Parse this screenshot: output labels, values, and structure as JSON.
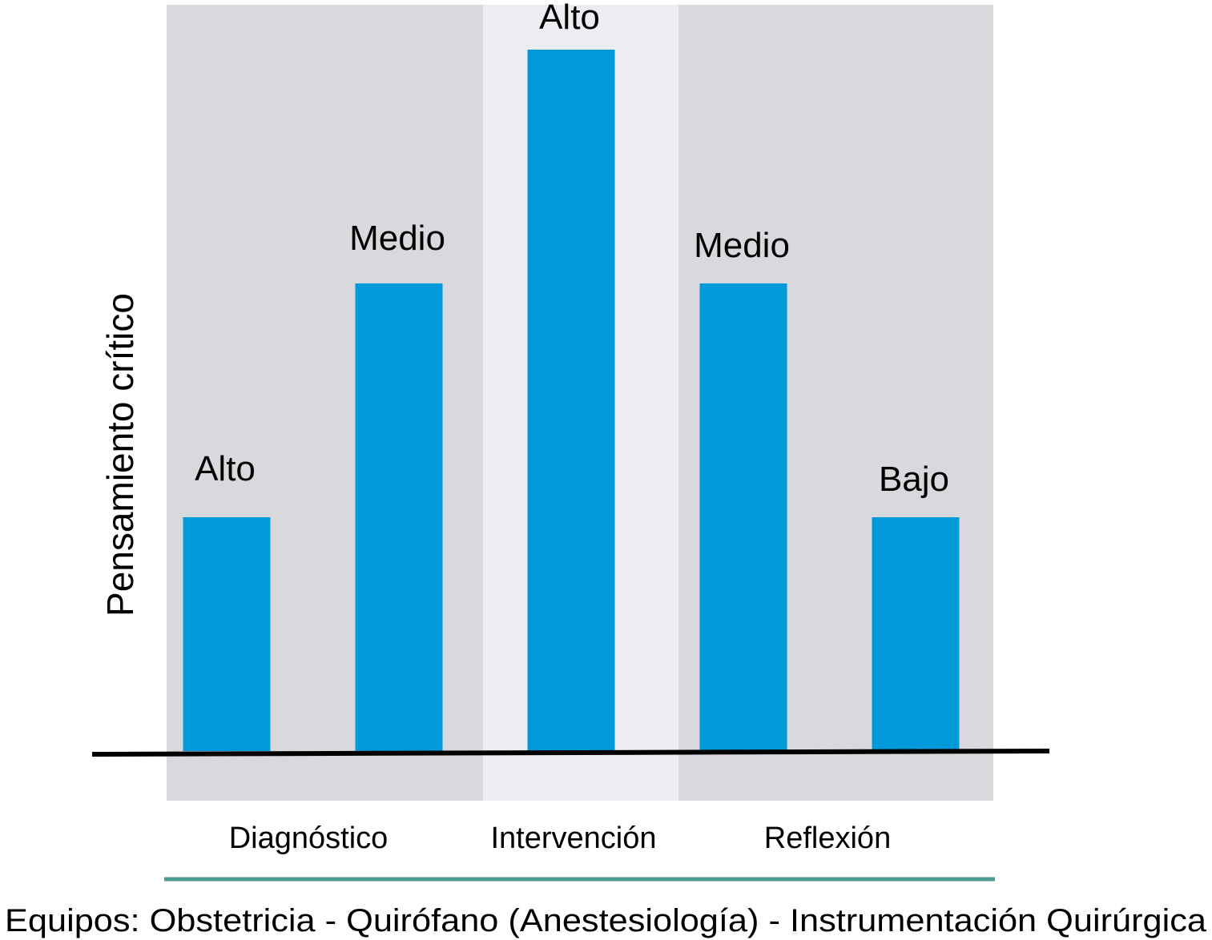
{
  "colors": {
    "bar": "#0099DA",
    "panel_dark": "#D8D9DD",
    "panel_light": "#ECEDF0",
    "baseline": "#000000",
    "bracket_line": "#4E9C90",
    "text": "#000000"
  },
  "chart_data": {
    "type": "bar",
    "ylabel": "Pensamiento crítico",
    "xlabel": "Equipos: Obstetricia - Quirófano (Anestesiología) - Instrumentación Quirúrgica",
    "phases": [
      {
        "label": "Diagnóstico",
        "shade": "dark"
      },
      {
        "label": "Intervención",
        "shade": "light"
      },
      {
        "label": "Reflexión",
        "shade": "dark"
      }
    ],
    "series": [
      {
        "values": [
          1,
          2,
          3,
          2,
          1
        ],
        "labels": [
          "Alto",
          "Medio",
          "Alto",
          "Medio",
          "Bajo"
        ]
      }
    ],
    "ylim": [
      0,
      3
    ],
    "grid": false,
    "legend": false
  }
}
